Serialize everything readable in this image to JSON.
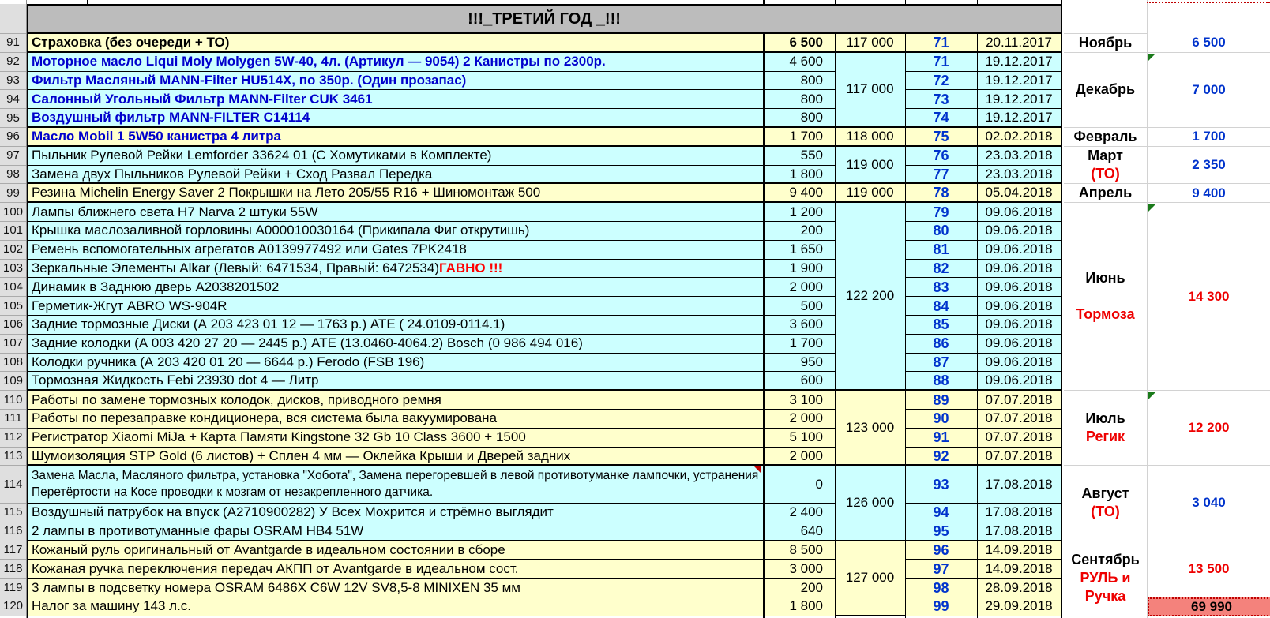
{
  "title": "!!!_ТРЕТИЙ ГОД _!!!",
  "colors": {
    "yellow": "#FFFFCC",
    "cyan": "#CCFFFF",
    "header_gray": "#BCBCBC",
    "rowhdr_gray": "#DFDFDF",
    "blue_text": "#0000CC",
    "counter_blue": "#0033CC",
    "red_text": "#EE0000",
    "salmon": "#F4827C",
    "marker_green": "#1A7A1A",
    "marker_red": "#C00000",
    "gridline_gray": "#D2D2D2"
  },
  "rows": [
    {
      "num": "91",
      "desc": "Страховка (без очереди + ТО)",
      "style": "b",
      "bg": "y",
      "cost": "6 500",
      "cost_bold": true,
      "counter": "71",
      "date": "20.11.2017",
      "group_end": true
    },
    {
      "num": "92",
      "desc": "Моторное масло Liqui Moly Molygen 5W-40, 4л. (Артикул — 9054) 2 Канистры по 2300р.",
      "style": "bb",
      "bg": "c",
      "cost": "4 600",
      "counter": "71",
      "date": "19.12.2017"
    },
    {
      "num": "93",
      "desc": "Фильтр Масляный MANN-Filter HU514X, по 350р. (Один прозапас)",
      "style": "bb",
      "bg": "c",
      "cost": "800",
      "counter": "72",
      "date": "19.12.2017"
    },
    {
      "num": "94",
      "desc": "Салонный Угольный Фильтр MANN-Filter CUK 3461",
      "style": "bb",
      "bg": "c",
      "cost": "800",
      "counter": "73",
      "date": "19.12.2017"
    },
    {
      "num": "95",
      "desc": "Воздушный фильтр MANN-FILTER C14114",
      "style": "bb",
      "bg": "c",
      "cost": "800",
      "counter": "74",
      "date": "19.12.2017",
      "group_end": true
    },
    {
      "num": "96",
      "desc": "Масло Mobil 1 5W50 канистра 4 литра",
      "style": "bb",
      "bg": "y",
      "cost": "1 700",
      "counter": "75",
      "date": "02.02.2018",
      "group_end": true
    },
    {
      "num": "97",
      "desc": "Пыльник Рулевой Рейки Lemforder 33624 01 (С Хомутиками в Комплекте)",
      "style": "n",
      "bg": "c",
      "cost": "550",
      "counter": "76",
      "date": "23.03.2018"
    },
    {
      "num": "98",
      "desc": "Замена двух Пыльников Рулевой Рейки + Сход Развал Передка",
      "style": "n",
      "bg": "c",
      "cost": "1 800",
      "counter": "77",
      "date": "23.03.2018",
      "group_end": true
    },
    {
      "num": "99",
      "desc": "Резина Michelin Energy Saver 2 Покрышки на Лето 205/55 R16 + Шиномонтаж 500",
      "style": "n",
      "bg": "y",
      "cost": "9 400",
      "counter": "78",
      "date": "05.04.2018",
      "group_end": true
    },
    {
      "num": "100",
      "desc": "Лампы ближнего света H7 Narva 2 штуки 55W",
      "style": "n",
      "bg": "c",
      "cost": "1 200",
      "counter": "79",
      "date": "09.06.2018"
    },
    {
      "num": "101",
      "desc": "Крышка маслозаливной горловины А000010030164 (Прикипала Фиг открутишь)",
      "style": "n",
      "bg": "c",
      "cost": "200",
      "counter": "80",
      "date": "09.06.2018"
    },
    {
      "num": "102",
      "desc": "Ремень вспомогательных агрегатов А0139977492 или Gates 7PK2418",
      "style": "n",
      "bg": "c",
      "cost": "1 650",
      "counter": "81",
      "date": "09.06.2018"
    },
    {
      "num": "103",
      "desc": "Зеркальные Элементы Alkar (Левый: 6471534, Правый: 6472534) ",
      "suffix": "ГАВНО !!!",
      "style": "n",
      "bg": "c",
      "cost": "1 900",
      "counter": "82",
      "date": "09.06.2018"
    },
    {
      "num": "104",
      "desc": "Динамик в Заднюю дверь А2038201502",
      "style": "n",
      "bg": "c",
      "cost": "2 000",
      "counter": "83",
      "date": "09.06.2018"
    },
    {
      "num": "105",
      "desc": "Герметик-Жгут ABRO WS-904R",
      "style": "n",
      "bg": "c",
      "cost": "500",
      "counter": "84",
      "date": "09.06.2018"
    },
    {
      "num": "106",
      "desc": "Задние тормозные Диски (А 203 423 01 12 — 1763 р.) ATE ( 24.0109-0114.1)",
      "style": "n",
      "bg": "c",
      "cost": "3 600",
      "counter": "85",
      "date": "09.06.2018"
    },
    {
      "num": "107",
      "desc": "Задние колодки (А 003 420 27 20 — 2445 р.) ATE (13.0460-4064.2) Bosch (0 986 494 016)",
      "style": "n",
      "bg": "c",
      "cost": "1 700",
      "counter": "86",
      "date": "09.06.2018"
    },
    {
      "num": "108",
      "desc": "Колодки ручника (А 203 420 01 20 — 6644 р.) Ferodo (FSB 196)",
      "style": "n",
      "bg": "c",
      "cost": "950",
      "counter": "87",
      "date": "09.06.2018"
    },
    {
      "num": "109",
      "desc": "Тормозная Жидкость Febi 23930 dot 4 — Литр",
      "style": "n",
      "bg": "c",
      "cost": "600",
      "counter": "88",
      "date": "09.06.2018",
      "group_end": true
    },
    {
      "num": "110",
      "desc": "Работы по замене тормозных колодок, дисков, приводного ремня",
      "style": "n",
      "bg": "y",
      "cost": "3 100",
      "counter": "89",
      "date": "07.07.2018"
    },
    {
      "num": "111",
      "desc": "Работы по перезаправке кондиционера, вся система была вакуумирована",
      "style": "n",
      "bg": "y",
      "cost": "2 000",
      "counter": "90",
      "date": "07.07.2018"
    },
    {
      "num": "112",
      "desc": "Регистратор Xiaomi MiJa + Карта Памяти Kingstone 32 Gb 10 Class 3600 + 1500",
      "style": "n",
      "bg": "y",
      "cost": "5 100",
      "counter": "91",
      "date": "07.07.2018"
    },
    {
      "num": "113",
      "desc": "Шумоизоляция STP Gold (6 листов) + Сплен 4 мм — Оклейка Крыши и Дверей задних",
      "style": "n",
      "bg": "y",
      "cost": "2 000",
      "counter": "92",
      "date": "07.07.2018",
      "group_end": true
    },
    {
      "num": "114",
      "desc": "Замена Масла, Масляного фильтра, установка \"Хобота\", Замена перегоревшей в левой противотуманке лампочки, устранения Перетёртости на Косе проводки к мозгам от незакрепленного датчика.",
      "style": "n",
      "bg": "c",
      "cost": "0",
      "counter": "93",
      "date": "17.08.2018",
      "tall": true,
      "comment": true
    },
    {
      "num": "115",
      "desc": "Воздушный патрубок на впуск (А2710900282) У Всех Мохрится и стрёмно выглядит",
      "style": "n",
      "bg": "c",
      "cost": "2 400",
      "counter": "94",
      "date": "17.08.2018"
    },
    {
      "num": "116",
      "desc": "2 лампы в противотуманные фары OSRAM HB4 51W",
      "style": "n",
      "bg": "c",
      "cost": "640",
      "counter": "95",
      "date": "17.08.2018",
      "group_end": true
    },
    {
      "num": "117",
      "desc": "Кожаный руль оригинальный от Avantgarde в идеальном состоянии в сборе",
      "style": "n",
      "bg": "y",
      "cost": "8 500",
      "counter": "96",
      "date": "14.09.2018"
    },
    {
      "num": "118",
      "desc": "Кожаная ручка переключения передач АКПП от Avantgarde в идеальном сост.",
      "style": "n",
      "bg": "y",
      "cost": "3 000",
      "counter": "97",
      "date": "14.09.2018"
    },
    {
      "num": "119",
      "desc": "3 лампы в подсветку номера OSRAM 6486X C6W 12V SV8,5-8 MINIXEN 35 мм",
      "style": "n",
      "bg": "y",
      "cost": "200",
      "counter": "98",
      "date": "28.09.2018"
    },
    {
      "num": "120",
      "desc": "Налог за машину 143 л.с.",
      "style": "n",
      "bg": "y",
      "cost": "1 800",
      "counter": "99",
      "date": "29.09.2018"
    }
  ],
  "odometer_groups": [
    {
      "from": "91",
      "to": "91",
      "value": "117 000"
    },
    {
      "from": "92",
      "to": "95",
      "value": "117 000"
    },
    {
      "from": "96",
      "to": "96",
      "value": "118 000"
    },
    {
      "from": "97",
      "to": "98",
      "value": "119 000"
    },
    {
      "from": "99",
      "to": "99",
      "value": "119 000"
    },
    {
      "from": "100",
      "to": "109",
      "value": "122 200"
    },
    {
      "from": "110",
      "to": "113",
      "value": "123 000"
    },
    {
      "from": "114",
      "to": "116",
      "value": "126 000"
    },
    {
      "from": "117",
      "to": "120",
      "value": "127 000"
    }
  ],
  "month_groups": [
    {
      "from": "91",
      "to": "91",
      "lines": [
        {
          "text": "Ноябрь",
          "color": "black"
        }
      ],
      "total": "6 500",
      "total_color": "blue"
    },
    {
      "from": "92",
      "to": "95",
      "lines": [
        {
          "text": "Декабрь",
          "color": "black"
        }
      ],
      "total": "7 000",
      "total_color": "blue",
      "indicator": true
    },
    {
      "from": "96",
      "to": "96",
      "lines": [
        {
          "text": "Февраль",
          "color": "black"
        }
      ],
      "total": "1 700",
      "total_color": "blue"
    },
    {
      "from": "97",
      "to": "98",
      "lines": [
        {
          "text": "Март",
          "color": "black"
        },
        {
          "text": "(ТО)",
          "color": "red"
        }
      ],
      "total": "2 350",
      "total_color": "blue"
    },
    {
      "from": "99",
      "to": "99",
      "lines": [
        {
          "text": "Апрель",
          "color": "black"
        }
      ],
      "total": "9 400",
      "total_color": "blue"
    },
    {
      "from": "100",
      "to": "109",
      "lines": [
        {
          "text": "Июнь",
          "color": "black"
        },
        {
          "text": "",
          "color": "black"
        },
        {
          "text": "Тормоза",
          "color": "red"
        }
      ],
      "total": "14 300",
      "total_color": "red",
      "indicator": true
    },
    {
      "from": "110",
      "to": "113",
      "lines": [
        {
          "text": "Июль",
          "color": "black"
        },
        {
          "text": "Регик",
          "color": "red"
        }
      ],
      "total": "12 200",
      "total_color": "red",
      "indicator": true
    },
    {
      "from": "114",
      "to": "116",
      "lines": [
        {
          "text": "Август",
          "color": "black"
        },
        {
          "text": "(ТО)",
          "color": "red"
        }
      ],
      "total": "3 040",
      "total_color": "blue"
    },
    {
      "from": "117",
      "to": "120",
      "lines": [
        {
          "text": "Сентябрь",
          "color": "black"
        },
        {
          "text": "РУЛЬ и",
          "color": "red"
        },
        {
          "text": "Ручка",
          "color": "red"
        }
      ],
      "total": "13 500",
      "total_color": "red",
      "total_to": "119",
      "grand_total": {
        "value": "69 990",
        "row": "120"
      }
    }
  ]
}
